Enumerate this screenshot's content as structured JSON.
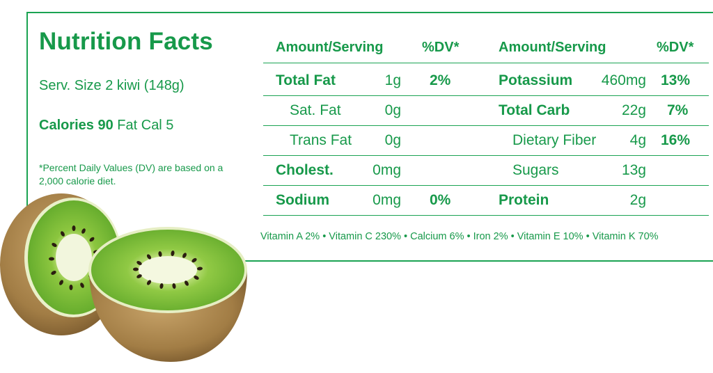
{
  "title": "Nutrition Facts",
  "serving": "Serv. Size 2 kiwi (148g)",
  "calories": {
    "label": "Calories 90",
    "fat_cal": " Fat Cal 5"
  },
  "footnote": "*Percent Daily Values (DV) are based on a 2,000 calorie diet.",
  "headers": {
    "left_amount": "Amount/Serving",
    "left_dv": "%DV*",
    "right_amount": "Amount/Serving",
    "right_dv": "%DV*"
  },
  "left_rows": [
    {
      "name": "Total Fat",
      "amount": "1g",
      "dv": "2%"
    },
    {
      "name": "Sat. Fat",
      "amount": "0g",
      "dv": ""
    },
    {
      "name": "Trans Fat",
      "amount": "0g",
      "dv": ""
    },
    {
      "name": "Cholest.",
      "amount": "0mg",
      "dv": ""
    },
    {
      "name": "Sodium",
      "amount": "0mg",
      "dv": "0%"
    }
  ],
  "right_rows": [
    {
      "name": "Potassium",
      "amount": "460mg",
      "dv": "13%"
    },
    {
      "name": "Total Carb",
      "amount": "22g",
      "dv": "7%"
    },
    {
      "name": "Dietary Fiber",
      "amount": "4g",
      "dv": "16%"
    },
    {
      "name": "Sugars",
      "amount": "13g",
      "dv": ""
    },
    {
      "name": "Protein",
      "amount": "2g",
      "dv": ""
    }
  ],
  "vitamins": "Vitamin A 2% • Vitamin C 230% • Calcium 6% • Iron 2% • Vitamin E 10% • Vitamin K 70%",
  "colors": {
    "green": "#17994a",
    "kiwi_flesh": "#7cc242",
    "kiwi_skin": "#a0804a"
  }
}
